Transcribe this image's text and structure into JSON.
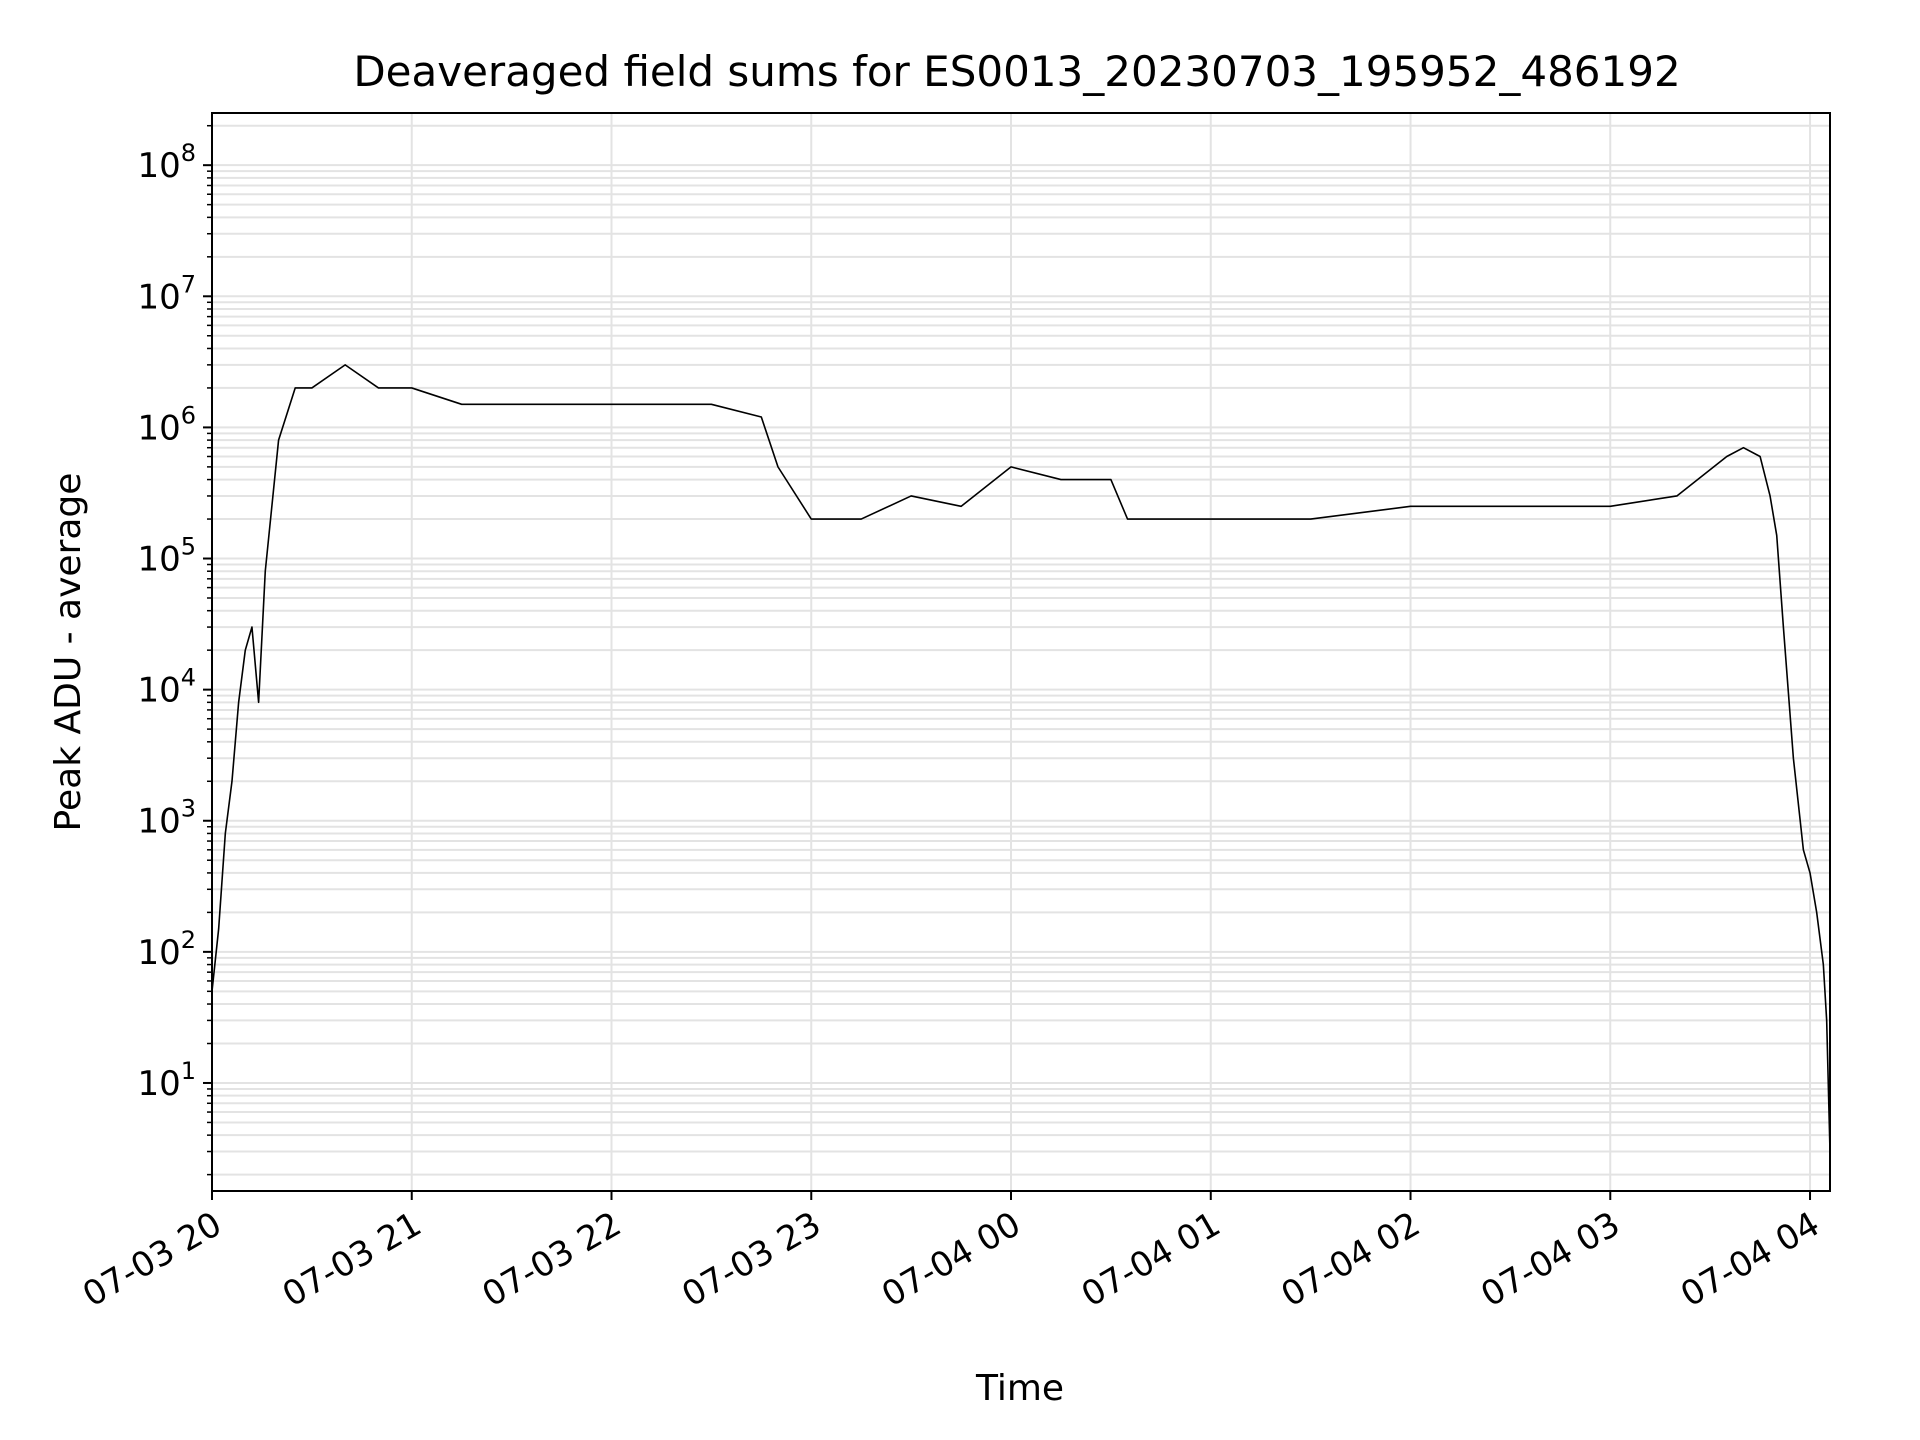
{
  "chart_data": {
    "type": "line",
    "title": "Deaveraged field sums for ES0013_20230703_195952_486192",
    "xlabel": "Time",
    "ylabel": "Peak ADU - average",
    "yscale": "log",
    "xlim": [
      "2023-07-03 20:00",
      "2023-07-04 04:06"
    ],
    "ylim": [
      1.5,
      250000000
    ],
    "grid": "on",
    "line_color": "#000000",
    "grid_color": "#e3e3e3",
    "x_ticks": [
      {
        "t": "2023-07-03 20:00",
        "label": "07-03 20"
      },
      {
        "t": "2023-07-03 21:00",
        "label": "07-03 21"
      },
      {
        "t": "2023-07-03 22:00",
        "label": "07-03 22"
      },
      {
        "t": "2023-07-03 23:00",
        "label": "07-03 23"
      },
      {
        "t": "2023-07-04 00:00",
        "label": "07-04 00"
      },
      {
        "t": "2023-07-04 01:00",
        "label": "07-04 01"
      },
      {
        "t": "2023-07-04 02:00",
        "label": "07-04 02"
      },
      {
        "t": "2023-07-04 03:00",
        "label": "07-04 03"
      },
      {
        "t": "2023-07-04 04:00",
        "label": "07-04 04"
      }
    ],
    "y_ticks": [
      {
        "value": 10,
        "base": "10",
        "exp": "1"
      },
      {
        "value": 100,
        "base": "10",
        "exp": "2"
      },
      {
        "value": 1000,
        "base": "10",
        "exp": "3"
      },
      {
        "value": 10000,
        "base": "10",
        "exp": "4"
      },
      {
        "value": 100000,
        "base": "10",
        "exp": "5"
      },
      {
        "value": 1000000,
        "base": "10",
        "exp": "6"
      },
      {
        "value": 10000000,
        "base": "10",
        "exp": "7"
      },
      {
        "value": 100000000,
        "base": "10",
        "exp": "8"
      }
    ],
    "series": [
      {
        "x": [
          "2023-07-03 20:00",
          "2023-07-03 20:02",
          "2023-07-03 20:04",
          "2023-07-03 20:06",
          "2023-07-03 20:08",
          "2023-07-03 20:10",
          "2023-07-03 20:12",
          "2023-07-03 20:14",
          "2023-07-03 20:16",
          "2023-07-03 20:20",
          "2023-07-03 20:25",
          "2023-07-03 20:30",
          "2023-07-03 20:40",
          "2023-07-03 20:50",
          "2023-07-03 21:00",
          "2023-07-03 21:15",
          "2023-07-03 21:30",
          "2023-07-03 21:45",
          "2023-07-03 22:00",
          "2023-07-03 22:15",
          "2023-07-03 22:30",
          "2023-07-03 22:45",
          "2023-07-03 22:50",
          "2023-07-03 23:00",
          "2023-07-03 23:15",
          "2023-07-03 23:30",
          "2023-07-03 23:45",
          "2023-07-04 00:00",
          "2023-07-04 00:15",
          "2023-07-04 00:30",
          "2023-07-04 00:35",
          "2023-07-04 01:00",
          "2023-07-04 01:30",
          "2023-07-04 02:00",
          "2023-07-04 02:30",
          "2023-07-04 03:00",
          "2023-07-04 03:20",
          "2023-07-04 03:35",
          "2023-07-04 03:40",
          "2023-07-04 03:45",
          "2023-07-04 03:48",
          "2023-07-04 03:50",
          "2023-07-04 03:52",
          "2023-07-04 03:55",
          "2023-07-04 03:58",
          "2023-07-04 04:00",
          "2023-07-04 04:02",
          "2023-07-04 04:04",
          "2023-07-04 04:05",
          "2023-07-04 04:06"
        ],
        "values": [
          50,
          150,
          800,
          2000,
          8000,
          20000,
          30000,
          8000,
          80000,
          800000,
          2000000,
          2000000,
          3000000,
          2000000,
          2000000,
          1500000,
          1500000,
          1500000,
          1500000,
          1500000,
          1500000,
          1200000,
          500000,
          200000,
          200000,
          300000,
          250000,
          500000,
          400000,
          400000,
          200000,
          200000,
          200000,
          250000,
          250000,
          250000,
          300000,
          600000,
          700000,
          600000,
          300000,
          150000,
          30000,
          3000,
          600,
          400,
          200,
          80,
          30,
          3
        ]
      }
    ]
  }
}
